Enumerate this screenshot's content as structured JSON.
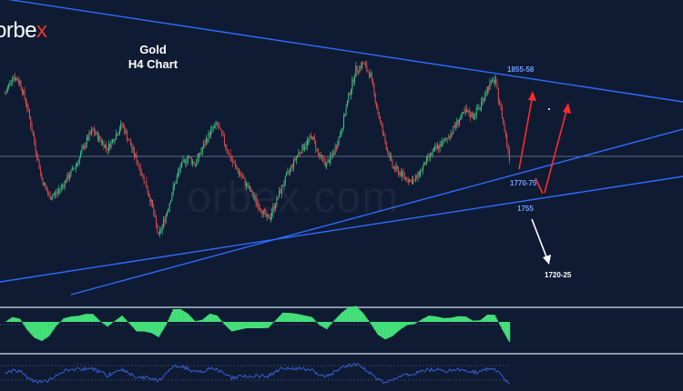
{
  "brand": {
    "text": "orbe",
    "accent": "x"
  },
  "title": {
    "line1": "Gold",
    "line2": "H4 Chart"
  },
  "watermark": "orbex.com",
  "levels": {
    "top": "1855-58",
    "mid": "1770-75",
    "low": "1755",
    "target": "1720-25"
  },
  "colors": {
    "background": "#0f1b33",
    "bull": "#3ec98a",
    "bear": "#e84f4f",
    "trendline": "#2f6bff",
    "arrow_up": "#ff2b2b",
    "arrow_down": "#ffffff",
    "oscillator": "#45e07a",
    "rsi": "#3b63e0"
  },
  "chart_data": {
    "type": "candlestick",
    "title": "Gold H4 Chart",
    "price_path": [
      1830,
      1845,
      1840,
      1820,
      1790,
      1760,
      1745,
      1748,
      1756,
      1765,
      1775,
      1790,
      1800,
      1792,
      1785,
      1795,
      1805,
      1790,
      1775,
      1760,
      1740,
      1712,
      1730,
      1752,
      1770,
      1778,
      1772,
      1785,
      1798,
      1805,
      1790,
      1775,
      1765,
      1755,
      1745,
      1735,
      1726,
      1740,
      1755,
      1768,
      1780,
      1788,
      1795,
      1778,
      1772,
      1782,
      1800,
      1828,
      1850,
      1855,
      1845,
      1815,
      1790,
      1770,
      1765,
      1760,
      1758,
      1768,
      1778,
      1785,
      1790,
      1798,
      1808,
      1815,
      1812,
      1820,
      1835,
      1842,
      1812,
      1778
    ],
    "annotations": [
      "1855-58",
      "1770-75",
      "1755",
      "1720-25"
    ]
  }
}
